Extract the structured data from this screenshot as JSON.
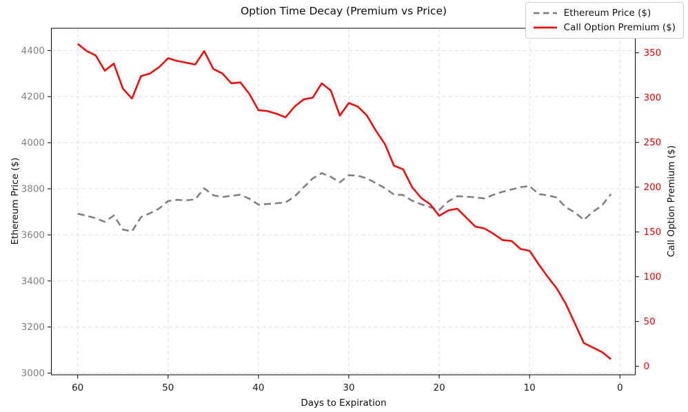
{
  "title": "Option Time Decay (Premium vs Price)",
  "x_axis": {
    "label": "Days to Expiration",
    "ticks": [
      60,
      50,
      40,
      30,
      20,
      10,
      0
    ],
    "inverted": true,
    "tick_color": "#1a1a1a"
  },
  "y_left": {
    "label": "Ethereum Price ($)",
    "ticks": [
      3000,
      3200,
      3400,
      3600,
      3800,
      4000,
      4200,
      4400
    ],
    "tick_color": "#808080"
  },
  "y_right": {
    "label": "Call Option Premium ($)",
    "ticks": [
      0,
      50,
      100,
      150,
      200,
      250,
      300,
      350
    ],
    "tick_color": "#e00000"
  },
  "legend": {
    "items": [
      {
        "label": "Ethereum Price ($)",
        "style": "dashed",
        "color": "#808080"
      },
      {
        "label": "Call Option Premium ($)",
        "style": "solid",
        "color": "#ee0b0b"
      }
    ]
  },
  "chart_data": {
    "type": "line",
    "title": "Option Time Decay (Premium vs Price)",
    "xlabel": "Days to Expiration",
    "ylabel_left": "Ethereum Price ($)",
    "ylabel_right": "Call Option Premium ($)",
    "x_inverted": true,
    "xlim": [
      63,
      -2
    ],
    "ylim_left": [
      2992,
      4485
    ],
    "ylim_right": [
      -9,
      374
    ],
    "grid": "dashed light gray, x ticks and left-axis ticks",
    "legend_position": "upper right, outside-overlapping top-right corner",
    "x": [
      60,
      59,
      58,
      57,
      56,
      55,
      54,
      53,
      52,
      51,
      50,
      49,
      48,
      47,
      46,
      45,
      44,
      43,
      42,
      41,
      40,
      39,
      38,
      37,
      36,
      35,
      34,
      33,
      32,
      31,
      30,
      29,
      28,
      27,
      26,
      25,
      24,
      23,
      22,
      21,
      20,
      19,
      18,
      17,
      16,
      15,
      14,
      13,
      12,
      11,
      10,
      9,
      8,
      7,
      6,
      5,
      4,
      3,
      2,
      1
    ],
    "series": [
      {
        "name": "Ethereum Price ($)",
        "axis": "left",
        "color": "#808080",
        "style": "dashed",
        "values": [
          3692,
          3683,
          3672,
          3657,
          3684,
          3623,
          3615,
          3677,
          3694,
          3714,
          3747,
          3752,
          3750,
          3754,
          3802,
          3772,
          3764,
          3770,
          3774,
          3757,
          3731,
          3734,
          3737,
          3741,
          3766,
          3806,
          3845,
          3868,
          3852,
          3828,
          3859,
          3857,
          3845,
          3825,
          3803,
          3775,
          3773,
          3748,
          3733,
          3720,
          3708,
          3745,
          3768,
          3766,
          3763,
          3758,
          3774,
          3787,
          3797,
          3807,
          3812,
          3777,
          3772,
          3762,
          3720,
          3698,
          3665,
          3700,
          3727,
          3777
        ]
      },
      {
        "name": "Call Option Premium ($)",
        "axis": "right",
        "color": "#ee0b0b",
        "style": "solid",
        "values": [
          360,
          352,
          347,
          330,
          338,
          310,
          299,
          324,
          327,
          334,
          344,
          341,
          339,
          337,
          352,
          332,
          327,
          316,
          317,
          304,
          286,
          285,
          282,
          278,
          290,
          298,
          300,
          316,
          308,
          280,
          294,
          290,
          280,
          263,
          248,
          224,
          220,
          200,
          188,
          181,
          168,
          174,
          176,
          166,
          156,
          154,
          148,
          141,
          140,
          131,
          129,
          114,
          100,
          87,
          70,
          48,
          26,
          21,
          16,
          8
        ]
      }
    ]
  }
}
